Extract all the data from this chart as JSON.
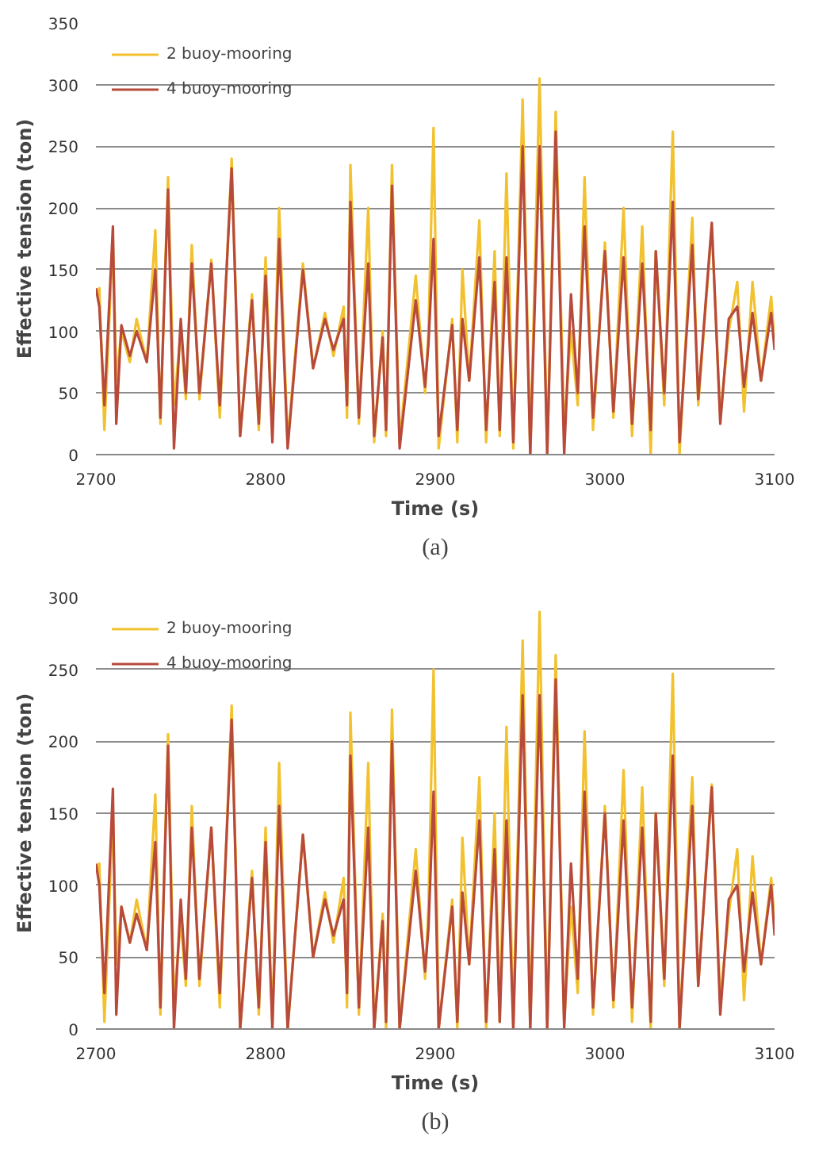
{
  "chart_data": [
    {
      "type": "line",
      "xlabel": "Time (s)",
      "ylabel": "Effective tension (ton)",
      "annotations": [
        "(a)"
      ],
      "xlim": [
        2700,
        3100
      ],
      "xticks": [
        2700,
        2800,
        2900,
        3000,
        3100
      ],
      "ylim": [
        0,
        350
      ],
      "yticks": [
        0,
        50,
        100,
        150,
        200,
        250,
        300,
        350
      ],
      "grid": "y",
      "legend": "top left",
      "x": [
        2700,
        2702,
        2705,
        2710,
        2712,
        2715,
        2720,
        2724,
        2730,
        2735,
        2738,
        2742.5,
        2746,
        2750,
        2753,
        2756.5,
        2761,
        2768,
        2773,
        2780,
        2785,
        2792,
        2796,
        2800,
        2804,
        2808,
        2813,
        2822,
        2828,
        2835,
        2840,
        2846,
        2848,
        2850,
        2855,
        2860.5,
        2864,
        2869,
        2871,
        2874.5,
        2879,
        2888.5,
        2894,
        2896,
        2899,
        2902,
        2910,
        2913,
        2916,
        2920,
        2926,
        2930,
        2935,
        2938,
        2942,
        2946,
        2951.5,
        2956,
        2961.5,
        2966,
        2971,
        2976,
        2980,
        2984,
        2988,
        2993,
        3000,
        3005,
        3011,
        3016,
        3022,
        3027,
        3030,
        3035,
        3040,
        3044,
        3051.5,
        3055,
        3063,
        3068,
        3073,
        3078,
        3082,
        3087,
        3092,
        3098,
        3100
      ],
      "series": [
        {
          "name": "2 buoy-mooring",
          "color": "#f2c12e",
          "values": [
            130,
            135,
            20,
            175,
            60,
            100,
            75,
            110,
            75,
            182,
            25,
            225,
            40,
            100,
            45,
            170,
            45,
            158,
            30,
            240,
            15,
            130,
            20,
            160,
            15,
            200,
            10,
            155,
            70,
            115,
            80,
            120,
            30,
            235,
            25,
            200,
            10,
            100,
            15,
            235,
            10,
            145,
            50,
            100,
            265,
            5,
            110,
            10,
            150,
            60,
            190,
            10,
            165,
            15,
            228,
            5,
            288,
            0,
            305,
            0,
            278,
            20,
            100,
            40,
            225,
            20,
            172,
            30,
            200,
            15,
            185,
            0,
            165,
            40,
            262,
            0,
            192,
            40,
            185,
            30,
            100,
            140,
            35,
            140,
            60,
            128,
            90
          ]
        },
        {
          "name": "4 buoy-mooring",
          "color": "#b84a3c",
          "values": [
            135,
            120,
            40,
            185,
            25,
            105,
            80,
            100,
            75,
            150,
            30,
            215,
            5,
            110,
            50,
            155,
            50,
            155,
            40,
            232,
            15,
            125,
            25,
            145,
            10,
            175,
            5,
            150,
            70,
            110,
            85,
            110,
            40,
            205,
            30,
            155,
            15,
            95,
            20,
            218,
            5,
            125,
            55,
            90,
            175,
            15,
            105,
            20,
            110,
            60,
            160,
            20,
            140,
            20,
            160,
            10,
            250,
            0,
            250,
            0,
            262,
            0,
            130,
            50,
            185,
            30,
            165,
            35,
            160,
            25,
            155,
            20,
            165,
            50,
            205,
            10,
            170,
            45,
            188,
            25,
            110,
            120,
            55,
            115,
            60,
            115,
            85
          ]
        }
      ]
    },
    {
      "type": "line",
      "xlabel": "Time (s)",
      "ylabel": "Effective tension (ton)",
      "annotations": [
        "(b)"
      ],
      "xlim": [
        2700,
        3100
      ],
      "xticks": [
        2700,
        2800,
        2900,
        3000,
        3100
      ],
      "ylim": [
        0,
        300
      ],
      "yticks": [
        0,
        50,
        100,
        150,
        200,
        250,
        300
      ],
      "grid": "y",
      "legend": "top left",
      "x": [
        2700,
        2702,
        2705,
        2710,
        2712,
        2715,
        2720,
        2724,
        2730,
        2735,
        2738,
        2742.5,
        2746,
        2750,
        2753,
        2756.5,
        2761,
        2768,
        2773,
        2780,
        2785,
        2792,
        2796,
        2800,
        2804,
        2808,
        2813,
        2822,
        2828,
        2835,
        2840,
        2846,
        2848,
        2850,
        2855,
        2860.5,
        2864,
        2869,
        2871,
        2874.5,
        2879,
        2888.5,
        2894,
        2896,
        2899,
        2902,
        2910,
        2913,
        2916,
        2920,
        2926,
        2930,
        2935,
        2938,
        2942,
        2946,
        2951.5,
        2956,
        2961.5,
        2966,
        2971,
        2976,
        2980,
        2984,
        2988,
        2993,
        3000,
        3005,
        3011,
        3016,
        3022,
        3027,
        3030,
        3035,
        3040,
        3044,
        3051.5,
        3055,
        3063,
        3068,
        3073,
        3078,
        3082,
        3087,
        3092,
        3098,
        3100
      ],
      "series": [
        {
          "name": "2 buoy-mooring",
          "color": "#f2c12e",
          "values": [
            110,
            115,
            5,
            150,
            45,
            85,
            60,
            90,
            55,
            163,
            10,
            205,
            20,
            75,
            30,
            155,
            30,
            140,
            15,
            225,
            0,
            110,
            10,
            140,
            5,
            185,
            0,
            135,
            50,
            95,
            60,
            105,
            15,
            220,
            10,
            185,
            0,
            80,
            0,
            222,
            0,
            125,
            35,
            85,
            250,
            0,
            90,
            0,
            133,
            45,
            175,
            0,
            150,
            5,
            210,
            0,
            270,
            0,
            290,
            0,
            260,
            5,
            85,
            25,
            207,
            10,
            155,
            15,
            180,
            5,
            168,
            0,
            150,
            30,
            247,
            0,
            175,
            30,
            170,
            20,
            80,
            125,
            20,
            120,
            45,
            105,
            75
          ]
        },
        {
          "name": "4 buoy-mooring",
          "color": "#b84a3c",
          "values": [
            115,
            100,
            25,
            167,
            10,
            85,
            60,
            80,
            55,
            130,
            15,
            197,
            0,
            90,
            35,
            140,
            35,
            140,
            25,
            215,
            0,
            105,
            15,
            130,
            0,
            155,
            0,
            135,
            50,
            90,
            65,
            90,
            25,
            190,
            15,
            140,
            0,
            75,
            5,
            200,
            0,
            110,
            40,
            70,
            165,
            0,
            85,
            5,
            95,
            45,
            145,
            5,
            125,
            5,
            145,
            0,
            232,
            0,
            232,
            0,
            243,
            0,
            115,
            35,
            165,
            15,
            150,
            20,
            145,
            15,
            140,
            5,
            150,
            35,
            190,
            0,
            155,
            30,
            168,
            10,
            90,
            100,
            40,
            95,
            45,
            100,
            65
          ]
        }
      ]
    }
  ]
}
